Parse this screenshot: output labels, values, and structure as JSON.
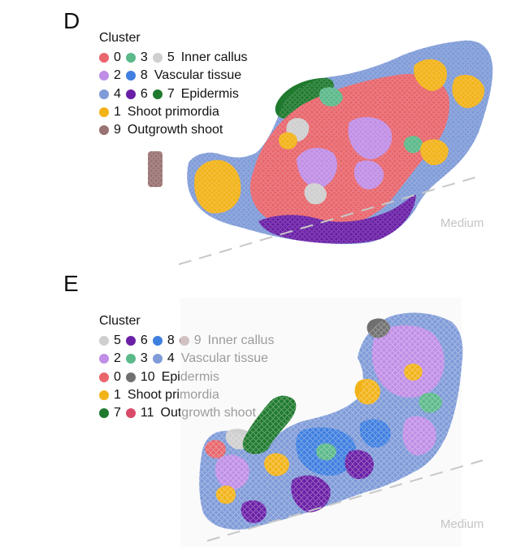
{
  "panel_d": {
    "letter": "D",
    "legend_title": "Cluster",
    "rows": [
      {
        "items": [
          {
            "n": "0",
            "color": "#e8666c"
          },
          {
            "n": "3",
            "color": "#5bb98a"
          },
          {
            "n": "5",
            "color": "#cfcfcf"
          }
        ],
        "label": "Inner callus"
      },
      {
        "items": [
          {
            "n": "2",
            "color": "#c08ee6"
          },
          {
            "n": "8",
            "color": "#3f7fe0"
          }
        ],
        "label": "Vascular tissue"
      },
      {
        "items": [
          {
            "n": "4",
            "color": "#7f9bd8"
          },
          {
            "n": "6",
            "color": "#6a1fa6"
          },
          {
            "n": "7",
            "color": "#1f7a2e"
          }
        ],
        "label": "Epidermis"
      },
      {
        "items": [
          {
            "n": "1",
            "color": "#f2b318"
          }
        ],
        "label": "Shoot primordia"
      },
      {
        "items": [
          {
            "n": "9",
            "color": "#9a7373"
          }
        ],
        "label": "Outgrowth shoot"
      }
    ],
    "medium": "Medium"
  },
  "panel_e": {
    "letter": "E",
    "legend_title": "Cluster",
    "rows": [
      {
        "items": [
          {
            "n": "5",
            "color": "#cfcfcf"
          },
          {
            "n": "6",
            "color": "#6a1fa6"
          },
          {
            "n": "8",
            "color": "#3f7fe0"
          },
          {
            "n": "9",
            "color": "#9a7373"
          }
        ],
        "label": "Inner callus"
      },
      {
        "items": [
          {
            "n": "2",
            "color": "#c08ee6"
          },
          {
            "n": "3",
            "color": "#5bb98a"
          },
          {
            "n": "4",
            "color": "#7f9bd8"
          }
        ],
        "label": "Vascular tissue"
      },
      {
        "items": [
          {
            "n": "0",
            "color": "#e8666c"
          },
          {
            "n": "10",
            "color": "#707070"
          }
        ],
        "label": "Epidermis"
      },
      {
        "items": [
          {
            "n": "1",
            "color": "#f2b318"
          }
        ],
        "label": "Shoot primordia"
      },
      {
        "items": [
          {
            "n": "7",
            "color": "#1f7a2e"
          },
          {
            "n": "11",
            "color": "#d94a6a"
          }
        ],
        "label": "Outgrowth shoot"
      }
    ],
    "medium": "Medium"
  }
}
